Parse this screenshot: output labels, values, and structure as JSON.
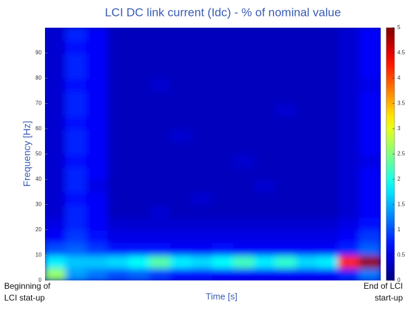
{
  "chart_data": {
    "type": "heatmap",
    "title": "LCI DC link current (Idc) - % of nominal value",
    "xlabel": "Time [s]",
    "ylabel": "Frequency [Hz]",
    "annotations": [
      [
        "Beginning of",
        "LCI stat-up"
      ],
      [
        "End of LCI",
        "start-up"
      ]
    ],
    "ylim": [
      0,
      100
    ],
    "yticks": [
      0,
      10,
      20,
      30,
      40,
      50,
      60,
      70,
      80,
      90
    ],
    "clim": [
      0,
      5
    ],
    "cticks": [
      0,
      0.5,
      1,
      1.5,
      2,
      2.5,
      3,
      3.5,
      4,
      4.5,
      5
    ],
    "colormap": "jet",
    "y": [
      2.5,
      7.5,
      12.5,
      17.5,
      22.5,
      27.5,
      32.5,
      37.5,
      42.5,
      47.5,
      52.5,
      57.5,
      62.5,
      67.5,
      72.5,
      77.5,
      82.5,
      87.5,
      92.5,
      97.5
    ],
    "z": [
      [
        2.6,
        1.4,
        1.2,
        1.0,
        1.1,
        0.9,
        0.7,
        0.7,
        0.6,
        0.6,
        0.6,
        0.6,
        0.6,
        0.6,
        0.8,
        1.2
      ],
      [
        1.8,
        1.6,
        1.6,
        1.7,
        1.9,
        2.3,
        1.8,
        1.7,
        1.9,
        2.2,
        1.8,
        2.1,
        1.7,
        1.8,
        4.2,
        4.9
      ],
      [
        1.0,
        1.1,
        0.9,
        0.7,
        0.7,
        0.7,
        0.6,
        0.6,
        0.7,
        0.6,
        0.6,
        0.6,
        0.6,
        0.6,
        0.8,
        1.1
      ],
      [
        0.6,
        0.9,
        0.7,
        0.5,
        0.5,
        0.5,
        0.5,
        0.5,
        0.5,
        0.5,
        0.5,
        0.5,
        0.5,
        0.5,
        0.6,
        0.9
      ],
      [
        0.5,
        0.8,
        0.6,
        0.4,
        0.4,
        0.4,
        0.4,
        0.4,
        0.4,
        0.4,
        0.4,
        0.4,
        0.4,
        0.4,
        0.5,
        0.7
      ],
      [
        0.4,
        0.8,
        0.6,
        0.3,
        0.3,
        0.4,
        0.3,
        0.3,
        0.3,
        0.3,
        0.3,
        0.3,
        0.3,
        0.3,
        0.4,
        0.6
      ],
      [
        0.4,
        0.7,
        0.6,
        0.3,
        0.3,
        0.3,
        0.3,
        0.4,
        0.3,
        0.3,
        0.3,
        0.3,
        0.3,
        0.3,
        0.4,
        0.6
      ],
      [
        0.4,
        0.8,
        0.5,
        0.3,
        0.3,
        0.3,
        0.3,
        0.3,
        0.3,
        0.3,
        0.4,
        0.3,
        0.3,
        0.3,
        0.4,
        0.6
      ],
      [
        0.4,
        0.8,
        0.6,
        0.3,
        0.3,
        0.3,
        0.3,
        0.3,
        0.3,
        0.3,
        0.3,
        0.3,
        0.3,
        0.3,
        0.4,
        0.6
      ],
      [
        0.4,
        0.7,
        0.6,
        0.3,
        0.3,
        0.3,
        0.3,
        0.3,
        0.3,
        0.4,
        0.3,
        0.3,
        0.3,
        0.3,
        0.4,
        0.5
      ],
      [
        0.4,
        0.8,
        0.6,
        0.3,
        0.3,
        0.3,
        0.3,
        0.3,
        0.3,
        0.3,
        0.3,
        0.3,
        0.3,
        0.3,
        0.4,
        0.6
      ],
      [
        0.4,
        0.8,
        0.6,
        0.3,
        0.3,
        0.3,
        0.4,
        0.3,
        0.3,
        0.3,
        0.3,
        0.3,
        0.3,
        0.3,
        0.4,
        0.6
      ],
      [
        0.4,
        0.7,
        0.6,
        0.3,
        0.3,
        0.3,
        0.3,
        0.3,
        0.3,
        0.3,
        0.3,
        0.3,
        0.3,
        0.3,
        0.4,
        0.6
      ],
      [
        0.4,
        0.8,
        0.6,
        0.3,
        0.3,
        0.3,
        0.3,
        0.3,
        0.3,
        0.3,
        0.3,
        0.4,
        0.3,
        0.3,
        0.4,
        0.6
      ],
      [
        0.4,
        0.8,
        0.6,
        0.3,
        0.3,
        0.3,
        0.3,
        0.3,
        0.3,
        0.3,
        0.3,
        0.3,
        0.3,
        0.3,
        0.4,
        0.6
      ],
      [
        0.4,
        0.7,
        0.6,
        0.3,
        0.3,
        0.4,
        0.3,
        0.3,
        0.3,
        0.3,
        0.3,
        0.3,
        0.3,
        0.3,
        0.4,
        0.5
      ],
      [
        0.4,
        0.8,
        0.6,
        0.3,
        0.3,
        0.3,
        0.3,
        0.3,
        0.3,
        0.3,
        0.3,
        0.3,
        0.3,
        0.3,
        0.4,
        0.6
      ],
      [
        0.4,
        0.8,
        0.6,
        0.3,
        0.3,
        0.3,
        0.3,
        0.3,
        0.3,
        0.3,
        0.3,
        0.3,
        0.3,
        0.3,
        0.4,
        0.6
      ],
      [
        0.4,
        0.7,
        0.6,
        0.3,
        0.3,
        0.3,
        0.3,
        0.3,
        0.3,
        0.3,
        0.3,
        0.3,
        0.3,
        0.3,
        0.4,
        0.6
      ],
      [
        0.4,
        0.8,
        0.6,
        0.3,
        0.3,
        0.3,
        0.3,
        0.3,
        0.3,
        0.3,
        0.3,
        0.3,
        0.3,
        0.3,
        0.4,
        0.6
      ]
    ]
  }
}
